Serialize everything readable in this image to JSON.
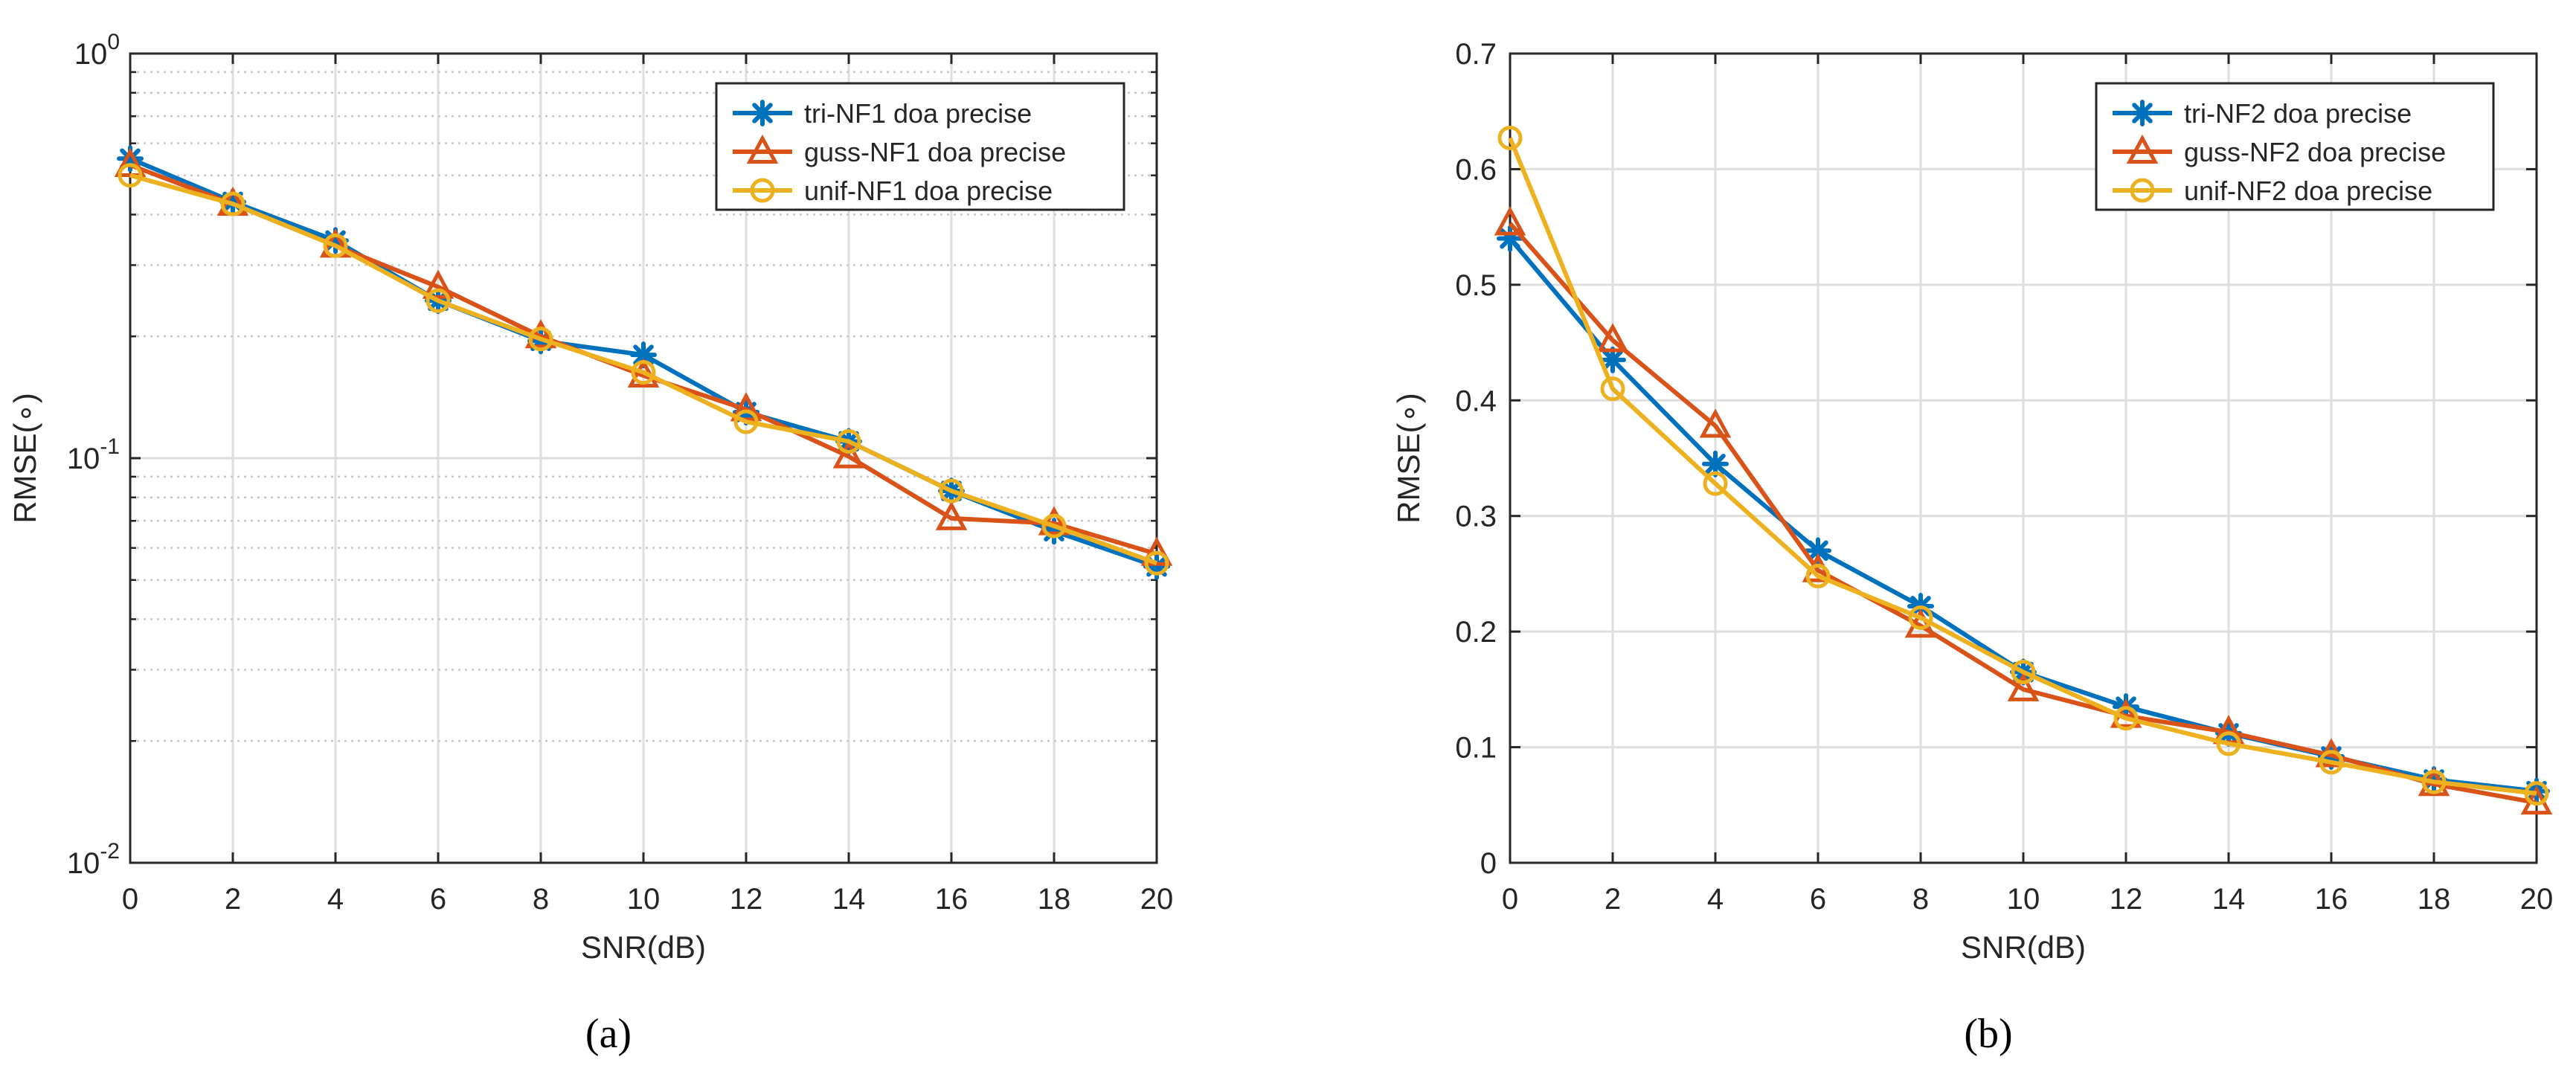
{
  "chart_data": [
    {
      "type": "line",
      "panel_label": "(a)",
      "title": "",
      "xlabel": "SNR(dB)",
      "ylabel": "RMSE(∘)",
      "yscale": "log",
      "xlim": [
        0,
        20
      ],
      "ylim": [
        0.01,
        1
      ],
      "xticks": [
        0,
        2,
        4,
        6,
        8,
        10,
        12,
        14,
        16,
        18,
        20
      ],
      "yticks": [
        {
          "value": 0.01,
          "base": "10",
          "exp": "-2"
        },
        {
          "value": 0.1,
          "base": "10",
          "exp": "-1"
        },
        {
          "value": 1,
          "base": "10",
          "exp": "0"
        }
      ],
      "grid": true,
      "legend_position": "top-right",
      "x": [
        0,
        2,
        4,
        6,
        8,
        10,
        12,
        14,
        16,
        18,
        20
      ],
      "series": [
        {
          "name": "tri-NF1 doa precise",
          "color": "#0072BD",
          "marker": "asterisk",
          "values": [
            0.55,
            0.43,
            0.345,
            0.245,
            0.195,
            0.18,
            0.13,
            0.11,
            0.083,
            0.066,
            0.054
          ]
        },
        {
          "name": "guss-NF1 doa precise",
          "color": "#D95319",
          "marker": "triangle",
          "values": [
            0.53,
            0.425,
            0.335,
            0.265,
            0.2,
            0.16,
            0.132,
            0.101,
            0.071,
            0.069,
            0.058
          ]
        },
        {
          "name": "unif-NF1 doa precise",
          "color": "#EDB120",
          "marker": "circle",
          "values": [
            0.5,
            0.425,
            0.335,
            0.245,
            0.197,
            0.163,
            0.123,
            0.11,
            0.083,
            0.068,
            0.055
          ]
        }
      ]
    },
    {
      "type": "line",
      "panel_label": "(b)",
      "title": "",
      "xlabel": "SNR(dB)",
      "ylabel": "RMSE(∘)",
      "yscale": "linear",
      "xlim": [
        0,
        20
      ],
      "ylim": [
        0,
        0.7
      ],
      "xticks": [
        0,
        2,
        4,
        6,
        8,
        10,
        12,
        14,
        16,
        18,
        20
      ],
      "yticks": [
        0,
        0.1,
        0.2,
        0.3,
        0.4,
        0.5,
        0.6,
        0.7
      ],
      "grid": true,
      "legend_position": "top-right",
      "x": [
        0,
        2,
        4,
        6,
        8,
        10,
        12,
        14,
        16,
        18,
        20
      ],
      "series": [
        {
          "name": "tri-NF2 doa precise",
          "color": "#0072BD",
          "marker": "asterisk",
          "values": [
            0.54,
            0.435,
            0.345,
            0.27,
            0.222,
            0.165,
            0.135,
            0.112,
            0.092,
            0.072,
            0.062
          ]
        },
        {
          "name": "guss-NF2 doa precise",
          "color": "#D95319",
          "marker": "triangle",
          "values": [
            0.553,
            0.452,
            0.378,
            0.253,
            0.205,
            0.15,
            0.127,
            0.113,
            0.093,
            0.068,
            0.052
          ]
        },
        {
          "name": "unif-NF2 doa precise",
          "color": "#EDB120",
          "marker": "circle",
          "values": [
            0.627,
            0.41,
            0.328,
            0.248,
            0.212,
            0.165,
            0.125,
            0.103,
            0.087,
            0.07,
            0.06
          ]
        }
      ]
    }
  ]
}
